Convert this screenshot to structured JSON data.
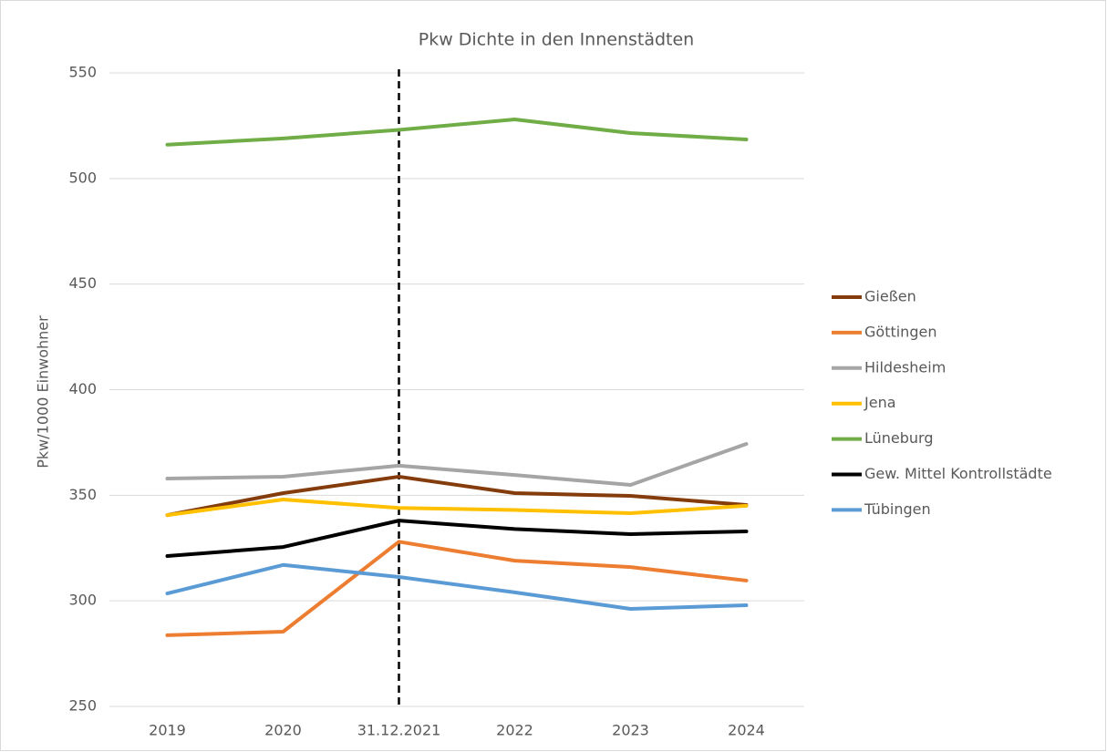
{
  "chart_data": {
    "type": "line",
    "title": "Pkw Dichte in den Innenstädten",
    "y_label": "Pkw/1000 Einwohner",
    "categories": [
      "2019",
      "2020",
      "31.12.2021",
      "2022",
      "2023",
      "2024"
    ],
    "ylim": [
      250,
      550
    ],
    "yticks": [
      250,
      300,
      350,
      400,
      450,
      500,
      550
    ],
    "grid": true,
    "legend": "right",
    "series": [
      {
        "name": "Gießen",
        "color": "#843c0c",
        "values": [
          340.6,
          351,
          358.8,
          351,
          349.7,
          345.4
        ]
      },
      {
        "name": "Göttingen",
        "color": "#ed7d31",
        "values": [
          283.7,
          285.4,
          328,
          319,
          316,
          309.6
        ]
      },
      {
        "name": "Hildesheim",
        "color": "#a5a5a5",
        "values": [
          357.9,
          358.8,
          364,
          359.6,
          354.9,
          374.3
        ]
      },
      {
        "name": "Jena",
        "color": "#ffc000",
        "values": [
          340.6,
          348,
          344,
          343,
          341.5,
          345
        ]
      },
      {
        "name": "Lüneburg",
        "color": "#70ad47",
        "values": [
          516,
          519,
          523,
          528,
          521.5,
          518.5
        ]
      },
      {
        "name": "Gew. Mittel  Kontrollstädte",
        "color": "#000000",
        "values": [
          321.2,
          325.5,
          338,
          334,
          331.6,
          332.9
        ]
      },
      {
        "name": "Tübingen",
        "color": "#5b9bd5",
        "values": [
          303.5,
          317,
          311.3,
          304,
          296.2,
          297.9
        ]
      }
    ]
  }
}
